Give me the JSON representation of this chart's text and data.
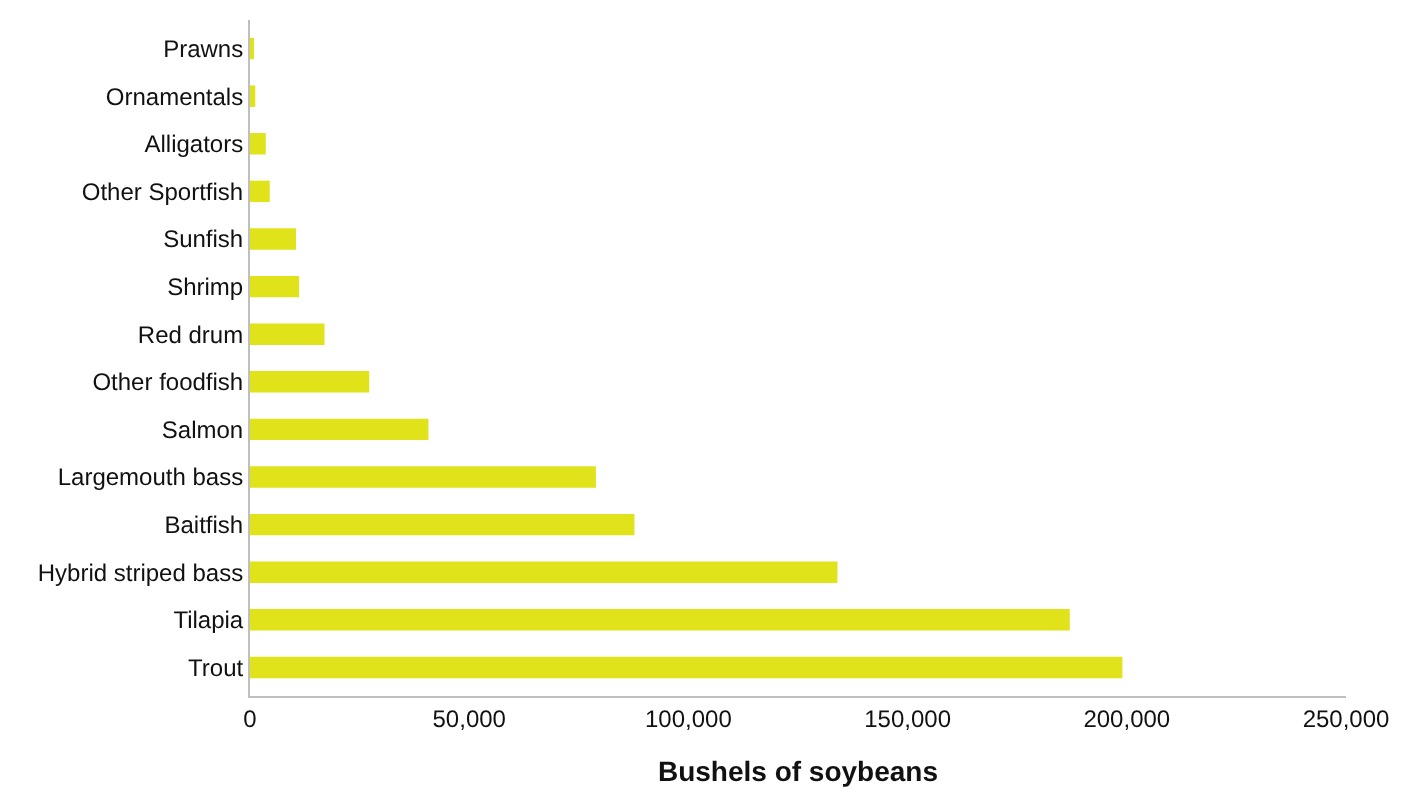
{
  "chart_data": {
    "type": "bar",
    "orientation": "horizontal",
    "xlabel": "Bushels of soybeans",
    "categories": [
      "Prawns",
      "Ornamentals",
      "Alligators",
      "Other Sportfish",
      "Sunfish",
      "Shrimp",
      "Red drum",
      "Other foodfish",
      "Salmon",
      "Largemouth bass",
      "Baitfish",
      "Hybrid striped bass",
      "Tilapia",
      "Trout"
    ],
    "values": [
      500,
      1200,
      3600,
      4500,
      10500,
      11200,
      17000,
      27200,
      40700,
      78900,
      87700,
      134000,
      187000,
      199000
    ],
    "color": "#e1e31a",
    "xlim": [
      0,
      250000
    ],
    "xticks": [
      {
        "value": 0,
        "label": "0"
      },
      {
        "value": 50000,
        "label": "50,000"
      },
      {
        "value": 100000,
        "label": "100,000"
      },
      {
        "value": 150000,
        "label": "150,000"
      },
      {
        "value": 200000,
        "label": "200,000"
      },
      {
        "value": 250000,
        "label": "250,000"
      }
    ]
  }
}
